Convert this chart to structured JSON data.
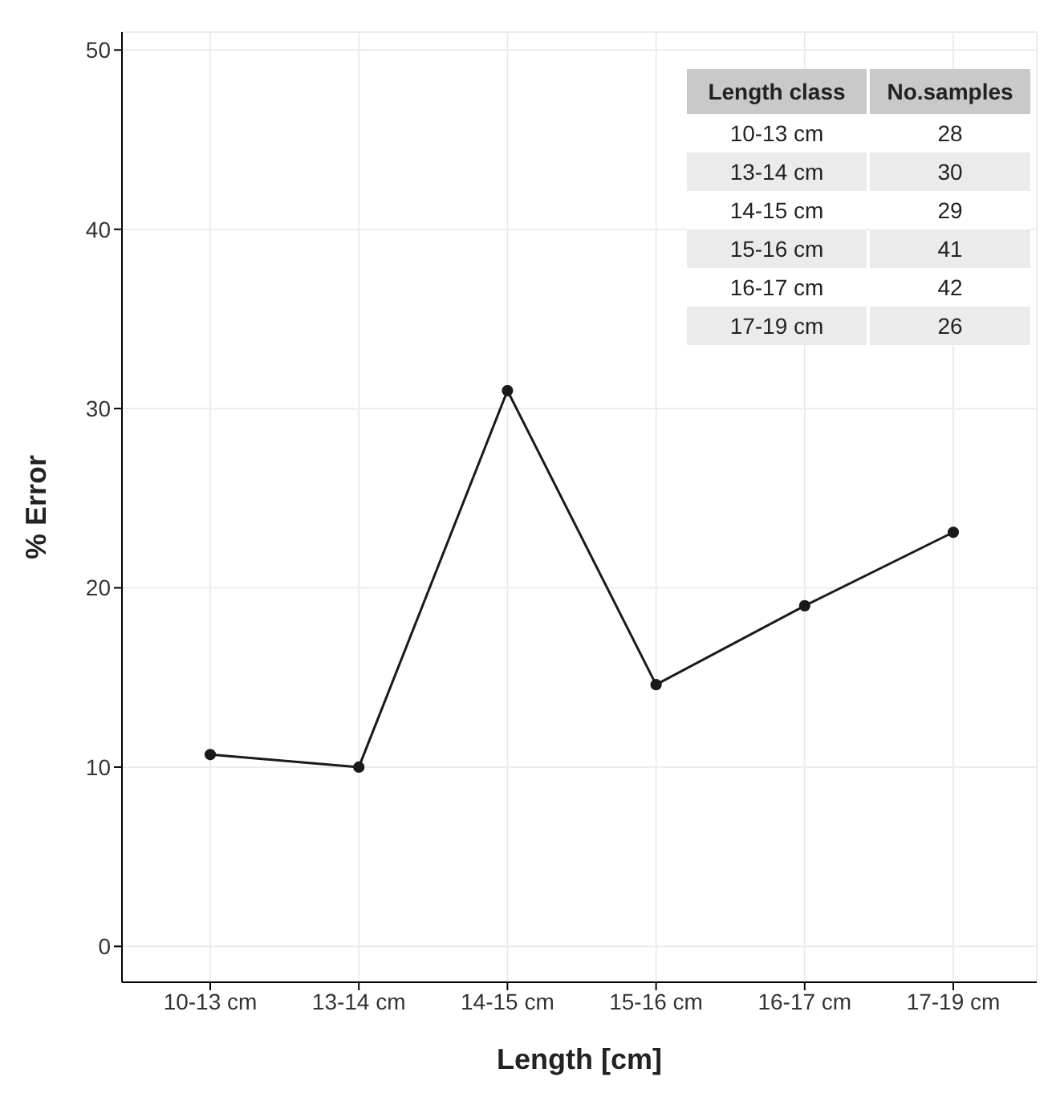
{
  "chart_data": {
    "type": "line",
    "xlabel": "Length [cm]",
    "ylabel": "% Error",
    "categories": [
      "10-13 cm",
      "13-14 cm",
      "14-15 cm",
      "15-16 cm",
      "16-17 cm",
      "17-19 cm"
    ],
    "series": [
      {
        "color": "#1a1a1a",
        "values": [
          10.7,
          10.0,
          31.0,
          14.6,
          19.0,
          23.1
        ]
      }
    ],
    "ylim": [
      -2,
      51
    ],
    "yticks": [
      0,
      10,
      20,
      30,
      40,
      50
    ],
    "grid": true,
    "marker": "circle",
    "line_style": "solid",
    "legend": false,
    "annotations": [
      "Length class",
      "No.samples",
      "10-13 cm",
      "28",
      "13-14 cm",
      "30",
      "14-15 cm",
      "29",
      "15-16 cm",
      "41",
      "16-17 cm",
      "42",
      "17-19 cm",
      "26"
    ]
  }
}
